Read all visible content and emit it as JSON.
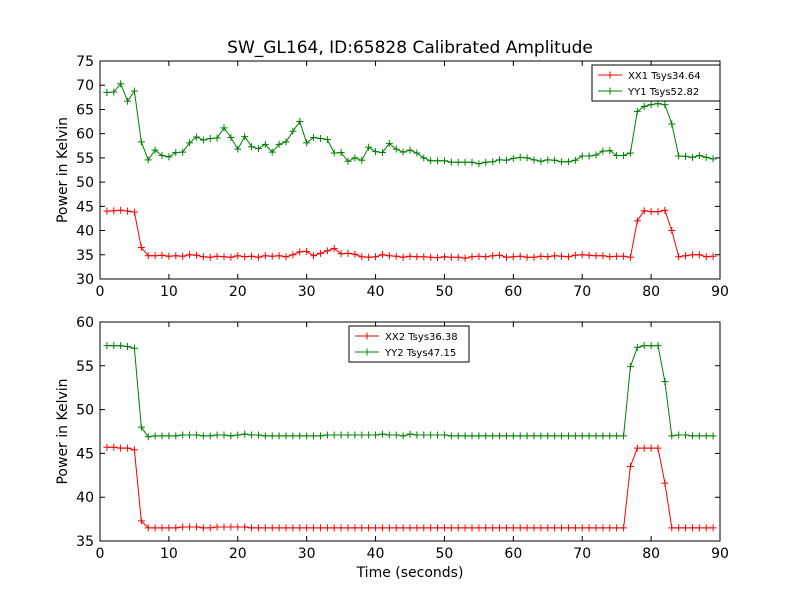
{
  "title": "SW_GL164, ID:65828 Calibrated Amplitude",
  "chart_data": [
    {
      "type": "line",
      "ylabel": "Power in Kelvin",
      "xlabel": "",
      "xlim": [
        0,
        90
      ],
      "ylim": [
        30,
        75
      ],
      "xticks": [
        "0",
        "10",
        "20",
        "30",
        "40",
        "50",
        "60",
        "70",
        "80",
        "90"
      ],
      "yticks": [
        "30",
        "35",
        "40",
        "45",
        "50",
        "55",
        "60",
        "65",
        "70",
        "75"
      ],
      "grid": false,
      "legend": "top-right",
      "x": [
        1,
        2,
        3,
        4,
        5,
        6,
        7,
        8,
        9,
        10,
        11,
        12,
        13,
        14,
        15,
        16,
        17,
        18,
        19,
        20,
        21,
        22,
        23,
        24,
        25,
        26,
        27,
        28,
        29,
        30,
        31,
        32,
        33,
        34,
        35,
        36,
        37,
        38,
        39,
        40,
        41,
        42,
        43,
        44,
        45,
        46,
        47,
        48,
        49,
        50,
        51,
        52,
        53,
        54,
        55,
        56,
        57,
        58,
        59,
        60,
        61,
        62,
        63,
        64,
        65,
        66,
        67,
        68,
        69,
        70,
        71,
        72,
        73,
        74,
        75,
        76,
        77,
        78,
        79,
        80,
        81,
        82,
        83,
        84,
        85,
        86,
        87,
        88,
        89
      ],
      "series": [
        {
          "name": "XX1 Tsys34.64",
          "color": "#ff0000",
          "values": [
            44.0,
            44.1,
            44.2,
            44.0,
            43.8,
            36.5,
            34.8,
            34.8,
            34.9,
            34.7,
            34.8,
            34.7,
            35.0,
            34.9,
            34.6,
            34.5,
            34.7,
            34.6,
            34.5,
            34.8,
            34.6,
            34.7,
            34.5,
            34.8,
            34.7,
            34.8,
            34.6,
            35.0,
            35.6,
            35.7,
            34.8,
            35.3,
            35.8,
            36.3,
            35.2,
            35.3,
            35.1,
            34.6,
            34.5,
            34.6,
            35.0,
            34.8,
            34.7,
            34.5,
            34.7,
            34.6,
            34.6,
            34.5,
            34.4,
            34.6,
            34.5,
            34.5,
            34.3,
            34.6,
            34.7,
            34.6,
            34.8,
            34.9,
            34.5,
            34.6,
            34.7,
            34.5,
            34.5,
            34.7,
            34.6,
            34.8,
            34.7,
            34.6,
            34.9,
            35.0,
            34.9,
            34.8,
            34.8,
            34.6,
            34.7,
            34.7,
            34.5,
            42.0,
            44.1,
            43.9,
            43.9,
            44.2,
            40.0,
            34.6,
            34.8,
            35.0,
            35.0,
            34.6,
            34.7
          ]
        },
        {
          "name": "YY1 Tsys52.82",
          "color": "#008000",
          "values": [
            68.5,
            68.6,
            70.3,
            66.7,
            68.8,
            58.3,
            54.6,
            56.6,
            55.5,
            55.2,
            56.1,
            56.2,
            58.1,
            59.3,
            58.7,
            59.0,
            59.1,
            61.2,
            59.2,
            56.8,
            59.4,
            57.3,
            56.9,
            57.8,
            56.2,
            57.8,
            58.3,
            60.5,
            62.5,
            58.1,
            59.2,
            59.0,
            58.8,
            56.0,
            56.1,
            54.3,
            55.0,
            54.5,
            57.2,
            56.3,
            56.1,
            58.0,
            56.8,
            56.2,
            56.6,
            56.0,
            55.0,
            54.4,
            54.4,
            54.4,
            54.1,
            54.1,
            54.1,
            54.1,
            53.8,
            54.1,
            54.2,
            54.6,
            54.5,
            54.9,
            55.1,
            55.0,
            54.6,
            54.3,
            54.6,
            54.5,
            54.2,
            54.2,
            54.5,
            55.4,
            55.4,
            55.6,
            56.4,
            56.5,
            55.5,
            55.5,
            56.0,
            64.6,
            65.6,
            66.0,
            66.2,
            66.0,
            62.0,
            55.4,
            55.3,
            55.1,
            55.5,
            55.1,
            54.8
          ]
        }
      ]
    },
    {
      "type": "line",
      "ylabel": "Power in Kelvin",
      "xlabel": "Time (seconds)",
      "xlim": [
        0,
        90
      ],
      "ylim": [
        35,
        60
      ],
      "xticks": [
        "0",
        "10",
        "20",
        "30",
        "40",
        "50",
        "60",
        "70",
        "80",
        "90"
      ],
      "yticks": [
        "35",
        "40",
        "45",
        "50",
        "55",
        "60"
      ],
      "grid": false,
      "legend": "top-center",
      "x": [
        1,
        2,
        3,
        4,
        5,
        6,
        7,
        8,
        9,
        10,
        11,
        12,
        13,
        14,
        15,
        16,
        17,
        18,
        19,
        20,
        21,
        22,
        23,
        24,
        25,
        26,
        27,
        28,
        29,
        30,
        31,
        32,
        33,
        34,
        35,
        36,
        37,
        38,
        39,
        40,
        41,
        42,
        43,
        44,
        45,
        46,
        47,
        48,
        49,
        50,
        51,
        52,
        53,
        54,
        55,
        56,
        57,
        58,
        59,
        60,
        61,
        62,
        63,
        64,
        65,
        66,
        67,
        68,
        69,
        70,
        71,
        72,
        73,
        74,
        75,
        76,
        77,
        78,
        79,
        80,
        81,
        82,
        83,
        84,
        85,
        86,
        87,
        88,
        89
      ],
      "series": [
        {
          "name": "XX2 Tsys36.38",
          "color": "#ff0000",
          "values": [
            45.7,
            45.7,
            45.6,
            45.6,
            45.4,
            37.3,
            36.5,
            36.5,
            36.5,
            36.5,
            36.5,
            36.6,
            36.6,
            36.6,
            36.5,
            36.5,
            36.6,
            36.6,
            36.6,
            36.6,
            36.6,
            36.5,
            36.5,
            36.5,
            36.5,
            36.5,
            36.5,
            36.5,
            36.5,
            36.5,
            36.5,
            36.5,
            36.5,
            36.5,
            36.5,
            36.5,
            36.5,
            36.5,
            36.5,
            36.5,
            36.5,
            36.5,
            36.5,
            36.5,
            36.5,
            36.5,
            36.5,
            36.5,
            36.5,
            36.5,
            36.5,
            36.5,
            36.5,
            36.5,
            36.5,
            36.5,
            36.5,
            36.5,
            36.5,
            36.5,
            36.5,
            36.5,
            36.5,
            36.5,
            36.5,
            36.5,
            36.5,
            36.5,
            36.5,
            36.5,
            36.5,
            36.5,
            36.5,
            36.5,
            36.5,
            36.5,
            43.5,
            45.6,
            45.6,
            45.6,
            45.6,
            41.6,
            36.5,
            36.5,
            36.5,
            36.5,
            36.5,
            36.5,
            36.5
          ]
        },
        {
          "name": "YY2 Tsys47.15",
          "color": "#008000",
          "values": [
            57.3,
            57.3,
            57.3,
            57.2,
            57.0,
            48.0,
            46.9,
            47.0,
            47.0,
            47.0,
            47.0,
            47.1,
            47.1,
            47.1,
            47.0,
            47.0,
            47.1,
            47.1,
            47.0,
            47.1,
            47.2,
            47.1,
            47.1,
            47.0,
            47.0,
            47.0,
            47.0,
            47.0,
            47.0,
            47.0,
            47.0,
            47.0,
            47.1,
            47.1,
            47.1,
            47.1,
            47.1,
            47.1,
            47.1,
            47.1,
            47.2,
            47.1,
            47.1,
            47.0,
            47.2,
            47.1,
            47.1,
            47.1,
            47.1,
            47.1,
            47.0,
            47.0,
            47.0,
            47.0,
            47.0,
            47.0,
            47.0,
            47.0,
            47.0,
            47.0,
            47.0,
            47.0,
            47.0,
            47.0,
            47.0,
            47.0,
            47.0,
            47.0,
            47.0,
            47.0,
            47.0,
            47.0,
            47.0,
            47.0,
            47.0,
            47.0,
            54.9,
            57.1,
            57.3,
            57.3,
            57.3,
            53.2,
            47.0,
            47.1,
            47.1,
            47.0,
            47.0,
            47.0,
            47.0
          ]
        }
      ]
    }
  ]
}
